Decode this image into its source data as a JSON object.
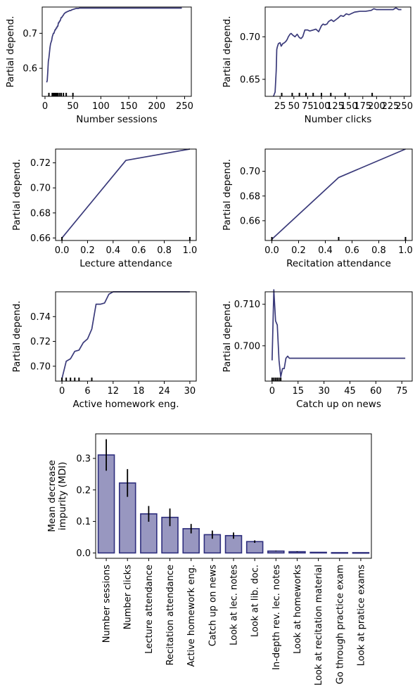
{
  "chart_data": [
    {
      "type": "line",
      "xlabel": "Number sessions",
      "ylabel": "Partial depend.",
      "xlim": [
        -5,
        262
      ],
      "ylim": [
        0.52,
        0.775
      ],
      "xticks": [
        0,
        50,
        100,
        150,
        200,
        250
      ],
      "yticks": [
        0.6,
        0.7
      ],
      "ytick_labels": [
        "0.6",
        "0.7"
      ],
      "series": [
        {
          "x": [
            3,
            4,
            5,
            6,
            7,
            8,
            9,
            10,
            11,
            12,
            13,
            14,
            15,
            16,
            17,
            18,
            19,
            20,
            21,
            22,
            23,
            24,
            25,
            26,
            27,
            28,
            29,
            30,
            31,
            32,
            33,
            34,
            35,
            36,
            37,
            38,
            39,
            40,
            42,
            44,
            46,
            48,
            50,
            52,
            54,
            56,
            58,
            60,
            62,
            64,
            245
          ],
          "y": [
            0.56,
            0.565,
            0.59,
            0.62,
            0.63,
            0.645,
            0.66,
            0.67,
            0.675,
            0.68,
            0.69,
            0.695,
            0.7,
            0.7,
            0.705,
            0.71,
            0.71,
            0.715,
            0.715,
            0.72,
            0.72,
            0.73,
            0.73,
            0.735,
            0.735,
            0.74,
            0.745,
            0.745,
            0.748,
            0.75,
            0.752,
            0.755,
            0.757,
            0.758,
            0.76,
            0.76,
            0.761,
            0.762,
            0.763,
            0.765,
            0.765,
            0.767,
            0.768,
            0.769,
            0.77,
            0.771,
            0.771,
            0.771,
            0.772,
            0.772,
            0.772
          ]
        }
      ],
      "rug": [
        7,
        13,
        15,
        17,
        19,
        21,
        23,
        26,
        29,
        33,
        38,
        50
      ]
    },
    {
      "type": "line",
      "xlabel": "Number clicks",
      "ylabel": "Partial depend.",
      "xlim": [
        -2,
        262
      ],
      "ylim": [
        0.63,
        0.735
      ],
      "xticks": [
        25,
        50,
        75,
        100,
        125,
        150,
        175,
        200,
        225,
        250
      ],
      "yticks": [
        0.65,
        0.7
      ],
      "ytick_labels": [
        "0.65",
        "0.70"
      ],
      "series": [
        {
          "x": [
            13,
            16,
            18,
            19,
            20,
            22,
            25,
            27,
            30,
            33,
            36,
            38,
            40,
            43,
            45,
            48,
            52,
            56,
            60,
            63,
            66,
            70,
            73,
            75,
            78,
            80,
            85,
            90,
            95,
            100,
            103,
            106,
            110,
            113,
            118,
            122,
            126,
            130,
            135,
            140,
            145,
            150,
            160,
            170,
            180,
            190,
            195,
            200,
            210,
            220,
            230,
            235,
            240,
            245
          ],
          "y": [
            0.63,
            0.635,
            0.66,
            0.685,
            0.688,
            0.692,
            0.693,
            0.689,
            0.692,
            0.693,
            0.695,
            0.697,
            0.7,
            0.703,
            0.704,
            0.702,
            0.7,
            0.703,
            0.699,
            0.698,
            0.7,
            0.708,
            0.708,
            0.708,
            0.707,
            0.707,
            0.708,
            0.709,
            0.706,
            0.713,
            0.715,
            0.714,
            0.715,
            0.718,
            0.72,
            0.718,
            0.72,
            0.722,
            0.725,
            0.724,
            0.727,
            0.726,
            0.729,
            0.73,
            0.73,
            0.731,
            0.733,
            0.732,
            0.732,
            0.732,
            0.732,
            0.734,
            0.732,
            0.732
          ]
        }
      ],
      "rug": [
        28,
        47,
        60,
        72,
        85,
        100,
        117,
        143,
        192
      ]
    },
    {
      "type": "line",
      "xlabel": "Lecture attendance",
      "ylabel": "Partial depend.",
      "xlim": [
        -0.05,
        1.05
      ],
      "ylim": [
        0.658,
        0.731
      ],
      "xticks": [
        0,
        0.2,
        0.4,
        0.6,
        0.8,
        1.0
      ],
      "xtick_labels": [
        "0.0",
        "0.2",
        "0.4",
        "0.6",
        "0.8",
        "1.0"
      ],
      "yticks": [
        0.66,
        0.68,
        0.7,
        0.72
      ],
      "ytick_labels": [
        "0.66",
        "0.68",
        "0.70",
        "0.72"
      ],
      "series": [
        {
          "x": [
            0,
            0.5,
            1.0
          ],
          "y": [
            0.66,
            0.722,
            0.731
          ]
        }
      ],
      "rug": [
        0,
        1.0
      ]
    },
    {
      "type": "line",
      "xlabel": "Recitation attendance",
      "ylabel": "Partial depend.",
      "xlim": [
        -0.05,
        1.05
      ],
      "ylim": [
        0.644,
        0.718
      ],
      "xticks": [
        0,
        0.2,
        0.4,
        0.6,
        0.8,
        1.0
      ],
      "xtick_labels": [
        "0.0",
        "0.2",
        "0.4",
        "0.6",
        "0.8",
        "1.0"
      ],
      "yticks": [
        0.66,
        0.68,
        0.7
      ],
      "ytick_labels": [
        "0.66",
        "0.68",
        "0.70"
      ],
      "series": [
        {
          "x": [
            0,
            0.5,
            1.0
          ],
          "y": [
            0.645,
            0.695,
            0.718
          ]
        }
      ],
      "rug": [
        0,
        0.5,
        1.0
      ]
    },
    {
      "type": "line",
      "xlabel": "Active homework eng.",
      "ylabel": "Partial depend.",
      "xlim": [
        -1.5,
        31.5
      ],
      "ylim": [
        0.688,
        0.76
      ],
      "xticks": [
        0,
        6,
        12,
        18,
        24,
        30
      ],
      "yticks": [
        0.7,
        0.72,
        0.74
      ],
      "ytick_labels": [
        "0.70",
        "0.72",
        "0.74"
      ],
      "series": [
        {
          "x": [
            0,
            1,
            2,
            3,
            4,
            5,
            6,
            7,
            8,
            9,
            10,
            11,
            12,
            30
          ],
          "y": [
            0.69,
            0.704,
            0.706,
            0.712,
            0.713,
            0.719,
            0.722,
            0.73,
            0.75,
            0.75,
            0.751,
            0.758,
            0.76,
            0.76
          ]
        }
      ],
      "rug": [
        0,
        1,
        2,
        3,
        4,
        7
      ]
    },
    {
      "type": "line",
      "xlabel": "Catch up on news",
      "ylabel": "Partial depend.",
      "xlim": [
        -4,
        81
      ],
      "ylim": [
        0.6915,
        0.713
      ],
      "xticks": [
        0,
        15,
        30,
        45,
        60,
        75
      ],
      "yticks": [
        0.7,
        0.71
      ],
      "ytick_labels": [
        "0.700",
        "0.710"
      ],
      "series": [
        {
          "x": [
            0,
            1,
            2,
            3,
            4,
            5,
            6,
            7,
            8,
            9,
            10,
            77
          ],
          "y": [
            0.6965,
            0.7135,
            0.706,
            0.705,
            0.6965,
            0.6925,
            0.6945,
            0.6945,
            0.697,
            0.6975,
            0.697,
            0.697
          ]
        }
      ],
      "rug": [
        0,
        1,
        2,
        3,
        4,
        5
      ]
    },
    {
      "type": "bar",
      "ylabel": "Mean decrease impurity (MDI)",
      "ylabel_lines": [
        "Mean decrease",
        "impurity (MDI)"
      ],
      "ylim": [
        -0.017,
        0.378
      ],
      "yticks": [
        0,
        0.1,
        0.2,
        0.3
      ],
      "ytick_labels": [
        "0.0",
        "0.1",
        "0.2",
        "0.3"
      ],
      "categories": [
        "Number sessions",
        "Number clicks",
        "Lecture attendance",
        "Recitation attendance",
        "Active homework eng.",
        "Catch up on news",
        "Look at lec. notes",
        "Look at lib. doc.",
        "In-depth rev. lec. notes",
        "Look at homeworks",
        "Look at recitation material",
        "Go through practice exam",
        "Look at pratice exams"
      ],
      "values": [
        0.311,
        0.222,
        0.124,
        0.113,
        0.077,
        0.058,
        0.055,
        0.036,
        0.006,
        0.004,
        0.002,
        0.001,
        0.001
      ],
      "errors": [
        0.05,
        0.044,
        0.025,
        0.028,
        0.015,
        0.013,
        0.01,
        0.004,
        0.001,
        0.001,
        0.0,
        0.0,
        0.0
      ]
    }
  ],
  "colors": {
    "line": "#3a3a7a",
    "bar_fill": "#9897c0",
    "bar_edge": "#2e2e7d",
    "error_bar": "#000000",
    "axis": "#000000",
    "rug": "#000000"
  }
}
